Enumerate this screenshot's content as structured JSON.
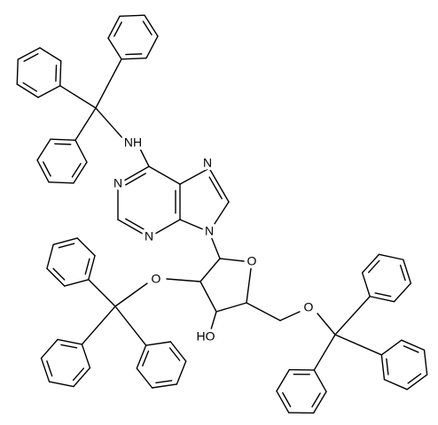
{
  "atoms": [
    "NH",
    "N",
    "N",
    "N",
    "N",
    "O",
    "O",
    "HO",
    "O"
  ]
}
